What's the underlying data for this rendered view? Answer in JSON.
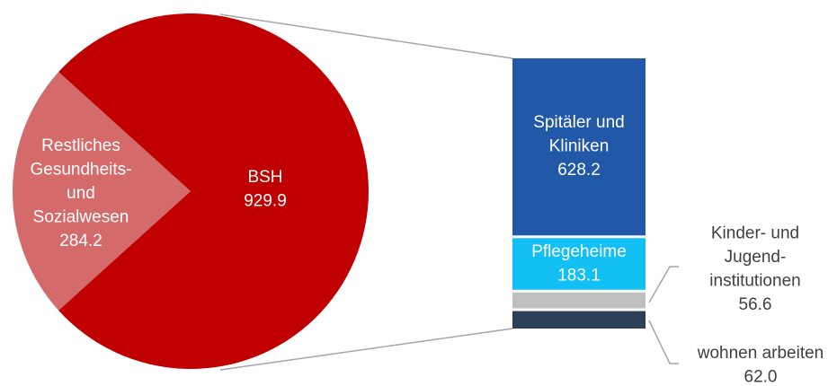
{
  "chart_data": {
    "type": "bar-of-pie",
    "pie": {
      "categories": [
        "Restliches\nGesundheits-\nund\nSozialwesen",
        "BSH"
      ],
      "values": [
        284.2,
        929.9
      ],
      "colors": [
        "#d46a6a",
        "#c00000"
      ]
    },
    "breakdown": {
      "categories": [
        "Spitäler und\nKliniken",
        "Pflegeheime",
        "Kinder- und\nJugend-\ninstitutionen",
        "wohnen arbeiten"
      ],
      "values": [
        628.2,
        183.1,
        56.6,
        62.0
      ],
      "value_labels": [
        "628.2",
        "183.1",
        "56.6",
        "62.0"
      ],
      "colors": [
        "#2158a8",
        "#12c0f5",
        "#bfbfbf",
        "#2e4057"
      ]
    }
  }
}
